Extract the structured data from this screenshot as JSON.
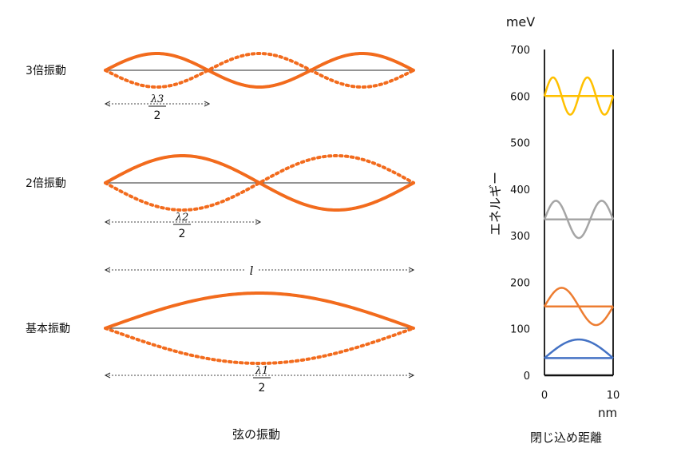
{
  "string_panel": {
    "labels": {
      "third": "3倍振動",
      "second": "2倍振動",
      "fundamental": "基本振動"
    },
    "lambda_labels": {
      "third": {
        "lambda": "λ3",
        "denom": "2"
      },
      "second": {
        "lambda": "λ2",
        "denom": "2"
      },
      "fundamental": {
        "lambda": "λ1",
        "denom": "2"
      }
    },
    "length_label": "l",
    "caption": "弦の振動",
    "colors": {
      "wave": "#f26b1d",
      "axis": "#555555"
    }
  },
  "chart_data": {
    "type": "line",
    "title": "",
    "caption": "閉じ込め距離",
    "ylabel": "エネルギー",
    "yunit": "meV",
    "xunit": "nm",
    "xlim": [
      0,
      10
    ],
    "ylim": [
      0,
      700
    ],
    "yticks": [
      0,
      100,
      200,
      300,
      400,
      500,
      600,
      700
    ],
    "xticks": [
      0,
      10
    ],
    "levels": [
      {
        "n": 1,
        "energy": 37,
        "amplitude": 40,
        "color": "#4472c4"
      },
      {
        "n": 2,
        "energy": 148,
        "amplitude": 40,
        "color": "#ed7d31"
      },
      {
        "n": 3,
        "energy": 335,
        "amplitude": 40,
        "color": "#a5a5a5"
      },
      {
        "n": 4,
        "energy": 600,
        "amplitude": 40,
        "color": "#ffc000"
      }
    ]
  }
}
